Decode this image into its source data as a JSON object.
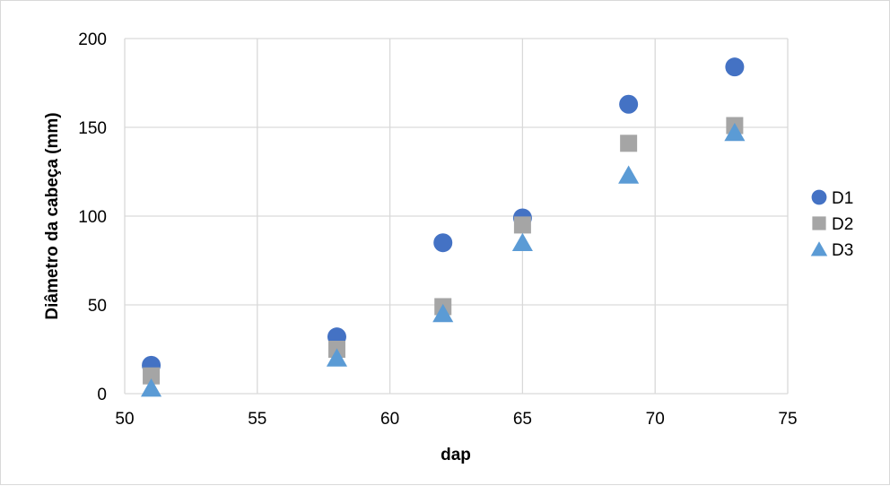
{
  "chart_data": {
    "type": "scatter",
    "title": "",
    "xlabel": "dap",
    "ylabel": "Diâmetro da cabeça (mm)",
    "xlim": [
      50,
      75
    ],
    "ylim": [
      0,
      200
    ],
    "xticks": [
      50,
      55,
      60,
      65,
      70,
      75
    ],
    "yticks": [
      0,
      50,
      100,
      150,
      200
    ],
    "grid": true,
    "legend_position": "right",
    "series": [
      {
        "name": "D1",
        "marker": "circle",
        "color": "#4472C4",
        "points": [
          [
            51,
            16
          ],
          [
            58,
            32
          ],
          [
            62,
            85
          ],
          [
            65,
            99
          ],
          [
            69,
            163
          ],
          [
            73,
            184
          ]
        ]
      },
      {
        "name": "D2",
        "marker": "square",
        "color": "#A5A5A5",
        "points": [
          [
            51,
            10
          ],
          [
            58,
            25
          ],
          [
            62,
            49
          ],
          [
            65,
            95
          ],
          [
            69,
            141
          ],
          [
            73,
            151
          ]
        ]
      },
      {
        "name": "D3",
        "marker": "triangle",
        "color": "#5B9BD5",
        "points": [
          [
            51,
            3
          ],
          [
            58,
            20
          ],
          [
            62,
            45
          ],
          [
            65,
            85
          ],
          [
            69,
            123
          ],
          [
            73,
            147
          ]
        ]
      }
    ]
  }
}
